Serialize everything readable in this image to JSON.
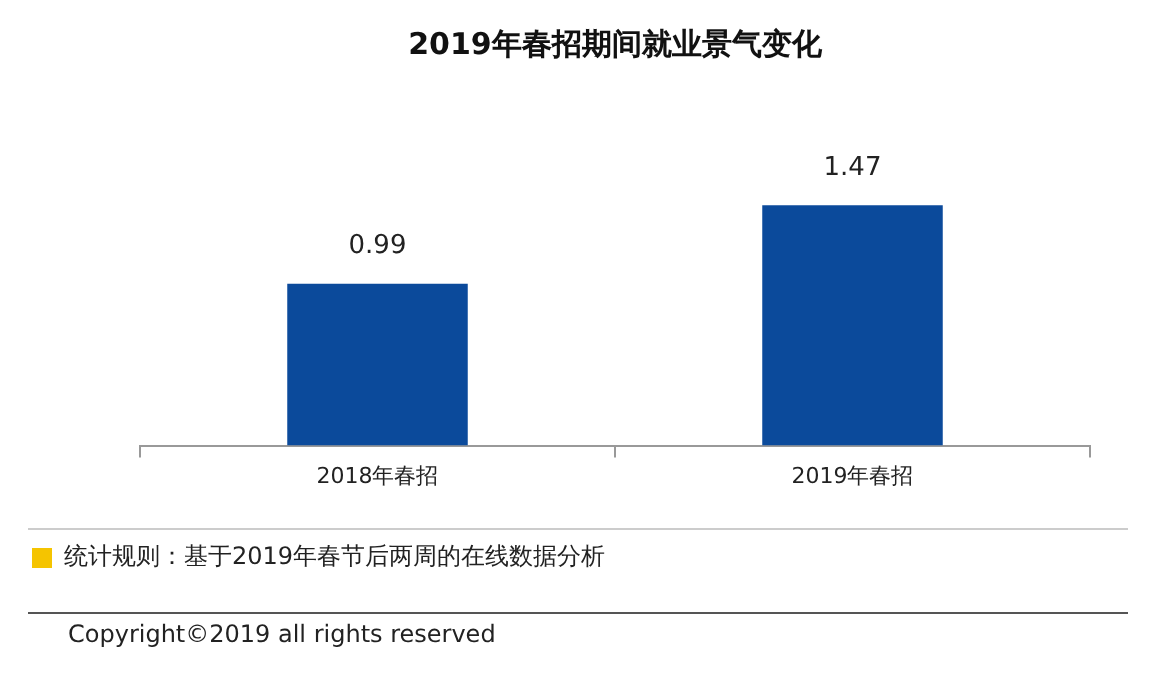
{
  "chart_data": {
    "type": "bar",
    "title": "2019年春招期间就业景气变化",
    "categories": [
      "2018年春招",
      "2019年春招"
    ],
    "values": [
      0.99,
      1.47
    ],
    "color": "#0b4a9b",
    "data_labels": true,
    "grid": false,
    "legend": false,
    "annotations": [
      "统计规则：基于2019年春节后两周的在线数据分析",
      "Copyright©2019 all rights reserved"
    ]
  }
}
